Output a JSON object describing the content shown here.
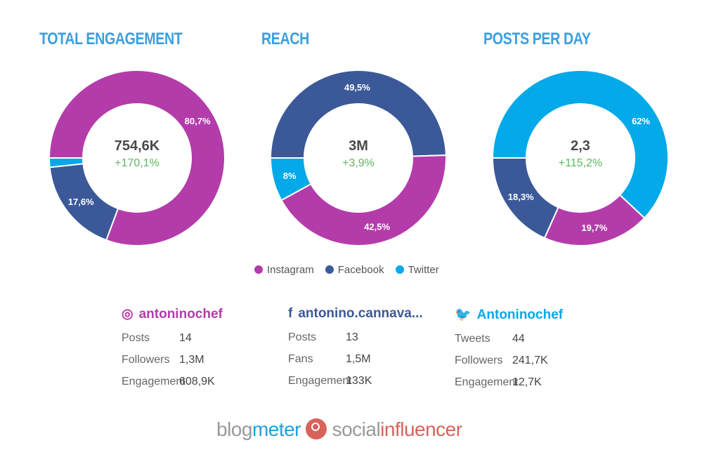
{
  "colors": {
    "Instagram": "#b43caa",
    "Facebook": "#3b5998",
    "Twitter": "#03a9e8"
  },
  "chart_data": [
    {
      "type": "pie",
      "title": "TOTAL ENGAGEMENT",
      "center_value": "754,6K",
      "center_delta": "+170,1%",
      "slices": [
        {
          "name": "Instagram",
          "value": 80.7,
          "label": "80,7%"
        },
        {
          "name": "Facebook",
          "value": 17.6,
          "label": "17,6%"
        },
        {
          "name": "Twitter",
          "value": 1.7,
          "label": ""
        }
      ]
    },
    {
      "type": "pie",
      "title": "REACH",
      "center_value": "3M",
      "center_delta": "+3,9%",
      "slices": [
        {
          "name": "Facebook",
          "value": 49.5,
          "label": "49,5%"
        },
        {
          "name": "Instagram",
          "value": 42.5,
          "label": "42,5%"
        },
        {
          "name": "Twitter",
          "value": 8,
          "label": "8%"
        }
      ]
    },
    {
      "type": "pie",
      "title": "POSTS PER DAY",
      "center_value": "2,3",
      "center_delta": "+115,2%",
      "slices": [
        {
          "name": "Twitter",
          "value": 62,
          "label": "62%"
        },
        {
          "name": "Instagram",
          "value": 19.7,
          "label": "19,7%"
        },
        {
          "name": "Facebook",
          "value": 18.3,
          "label": "18,3%"
        }
      ]
    }
  ],
  "legend": [
    "Instagram",
    "Facebook",
    "Twitter"
  ],
  "profiles": [
    {
      "network": "Instagram",
      "icon": "instagram-icon",
      "glyph": "◎",
      "handle": "antoninochef",
      "rows": [
        {
          "k": "Posts",
          "v": "14"
        },
        {
          "k": "Followers",
          "v": "1,3M"
        },
        {
          "k": "Engagement",
          "v": "608,9K"
        }
      ]
    },
    {
      "network": "Facebook",
      "icon": "facebook-icon",
      "glyph": "f",
      "handle": "antonino.cannava...",
      "rows": [
        {
          "k": "Posts",
          "v": "13"
        },
        {
          "k": "Fans",
          "v": "1,5M"
        },
        {
          "k": "Engagement",
          "v": "133K"
        }
      ]
    },
    {
      "network": "Twitter",
      "icon": "twitter-icon",
      "glyph": "🐦",
      "handle": "Antoninochef",
      "rows": [
        {
          "k": "Tweets",
          "v": "44"
        },
        {
          "k": "Followers",
          "v": "241,7K"
        },
        {
          "k": "Engagement",
          "v": "12,7K"
        }
      ]
    }
  ],
  "logo": {
    "part1": "blog",
    "part2": "meter",
    "part3": "social",
    "part4": "influencer"
  }
}
